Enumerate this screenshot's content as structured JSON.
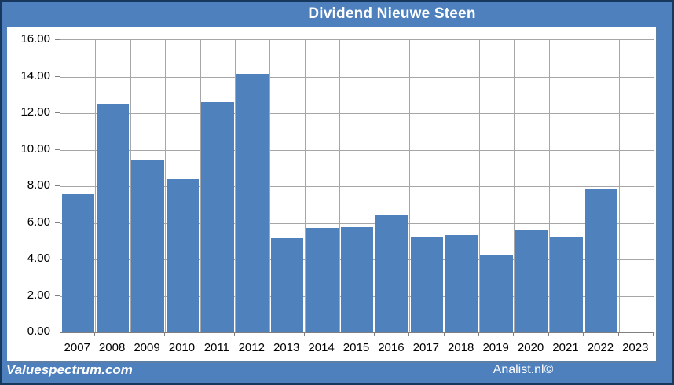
{
  "window_title": "Dividend Nieuwe Steen",
  "footer": {
    "left": "Valuespectrum.com",
    "right": "Analist.nl©"
  },
  "colors": {
    "bar": "#4f81bd",
    "chrome_blue": "#4d80bd",
    "outer_border": "#17375d",
    "gridline": "#a6a6a6",
    "axis_line": "#808080",
    "title_text": "#ffffff",
    "axis_text": "#000000"
  },
  "chart_data": {
    "type": "bar",
    "title": "Dividend Nieuwe Steen",
    "categories": [
      "2007",
      "2008",
      "2009",
      "2010",
      "2011",
      "2012",
      "2013",
      "2014",
      "2015",
      "2016",
      "2017",
      "2018",
      "2019",
      "2020",
      "2021",
      "2022",
      "2023"
    ],
    "values": [
      7.55,
      12.5,
      9.4,
      8.4,
      12.6,
      14.15,
      5.15,
      5.7,
      5.75,
      6.4,
      5.25,
      5.35,
      4.25,
      5.6,
      5.25,
      7.85,
      null
    ],
    "xlabel": "",
    "ylabel": "",
    "ylim": [
      0,
      16
    ],
    "ytick_step": 2,
    "ytick_labels": [
      "0.00",
      "2.00",
      "4.00",
      "6.00",
      "8.00",
      "10.00",
      "12.00",
      "14.00",
      "16.00"
    ],
    "grid": true,
    "legend": false
  }
}
